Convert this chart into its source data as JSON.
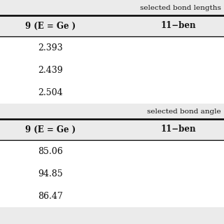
{
  "bg_color": "#ebebeb",
  "white_color": "#ffffff",
  "text_color": "#111111",
  "section1_header": "selected bond lengths",
  "section2_header": "selected bond angle",
  "col1_header": "9 (E = Ge )",
  "col2_header": "11−ben",
  "bond_lengths": [
    "2.393",
    "2.439",
    "2.504"
  ],
  "bond_angles": [
    "85.06",
    "94.85",
    "86.47"
  ],
  "figsize": [
    3.2,
    3.2
  ],
  "dpi": 100
}
